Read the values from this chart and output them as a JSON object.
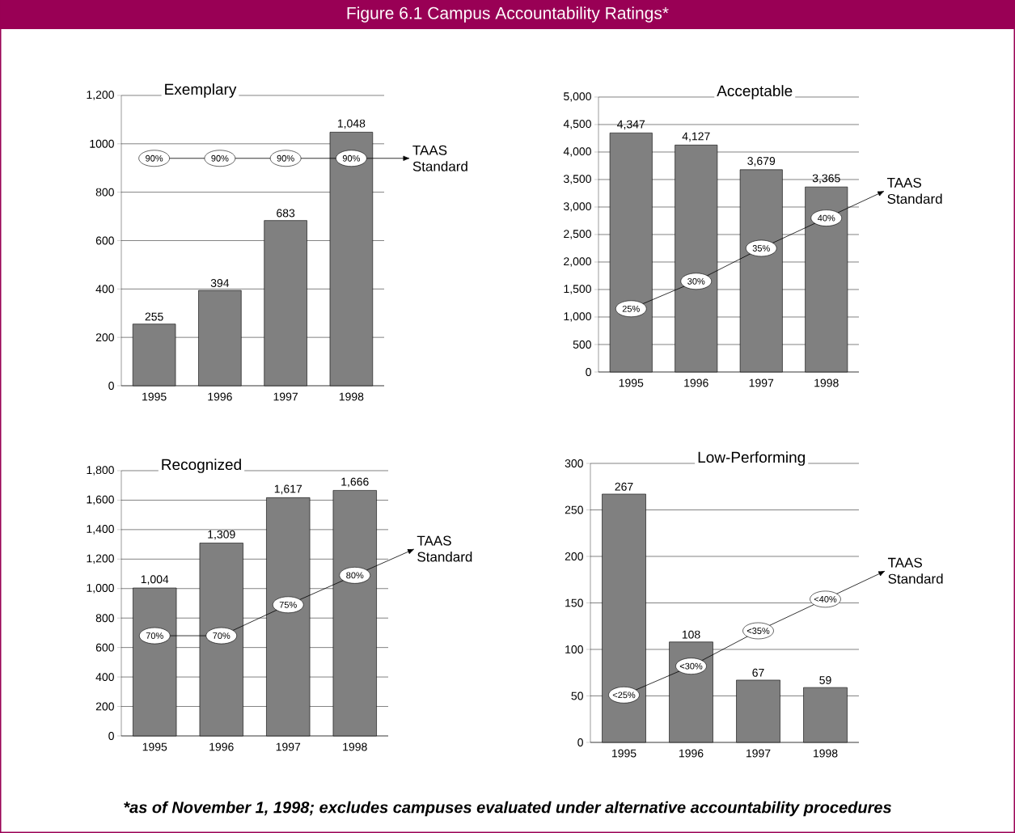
{
  "chart_data": [
    {
      "type": "other",
      "title": "Figure 6.1   Campus Accountability Ratings*",
      "annotations": [
        "*as of November 1, 1998; excludes campuses evaluated under alternative accountability procedures"
      ]
    },
    {
      "type": "bar",
      "title": "Exemplary",
      "categories": [
        "1995",
        "1996",
        "1997",
        "1998"
      ],
      "ylim": [
        0,
        1200
      ],
      "yticks": [
        0,
        200,
        400,
        600,
        800,
        1000,
        {
          "value": 1200,
          "label": "1,200"
        }
      ],
      "grid": "y",
      "series": [
        {
          "color": "#808080",
          "values": [
            255,
            394,
            683,
            1048
          ],
          "value_labels": [
            "255",
            "394",
            "683",
            "1,048"
          ]
        },
        {
          "type": "line",
          "marker": "circle",
          "name": "TAAS Standard",
          "color": "#000000",
          "values": [
            940,
            940,
            940,
            940
          ]
        }
      ],
      "annotations": [
        {
          "text": "90%",
          "x": "1995",
          "y": 940
        },
        {
          "text": "90%",
          "x": "1996",
          "y": 940
        },
        {
          "text": "90%",
          "x": "1997",
          "y": 940
        },
        {
          "text": "90%",
          "x": "1998",
          "y": 940
        }
      ]
    },
    {
      "type": "bar",
      "title": "Acceptable",
      "categories": [
        "1995",
        "1996",
        "1997",
        "1998"
      ],
      "ylim": [
        0,
        5000
      ],
      "yticks": [
        0,
        500,
        {
          "value": 1000,
          "label": "1,000"
        },
        {
          "value": 1500,
          "label": "1,500"
        },
        {
          "value": 2000,
          "label": "2,000"
        },
        {
          "value": 2500,
          "label": "2,500"
        },
        {
          "value": 3000,
          "label": "3,000"
        },
        {
          "value": 3500,
          "label": "3,500"
        },
        {
          "value": 4000,
          "label": "4,000"
        },
        {
          "value": 4500,
          "label": "4,500"
        },
        {
          "value": 5000,
          "label": "5,000"
        }
      ],
      "grid": "y",
      "series": [
        {
          "color": "#808080",
          "values": [
            4347,
            4127,
            3679,
            3365
          ],
          "value_labels": [
            "4,347",
            "4,127",
            "3,679",
            "3,365"
          ]
        },
        {
          "type": "line",
          "marker": "circle",
          "name": "TAAS Standard",
          "color": "#000000",
          "values": [
            1150,
            1650,
            2250,
            2800
          ]
        }
      ],
      "annotations": [
        {
          "text": "25%",
          "x": "1995",
          "y": 1150
        },
        {
          "text": "30%",
          "x": "1996",
          "y": 1650
        },
        {
          "text": "35%",
          "x": "1997",
          "y": 2250
        },
        {
          "text": "40%",
          "x": "1998",
          "y": 2800
        }
      ]
    },
    {
      "type": "bar",
      "title": "Recognized",
      "categories": [
        "1995",
        "1996",
        "1997",
        "1998"
      ],
      "ylim": [
        0,
        1800
      ],
      "yticks": [
        0,
        200,
        400,
        600,
        800,
        {
          "value": 1000,
          "label": "1,000"
        },
        {
          "value": 1200,
          "label": "1,200"
        },
        {
          "value": 1400,
          "label": "1,400"
        },
        {
          "value": 1600,
          "label": "1,600"
        },
        {
          "value": 1800,
          "label": "1,800"
        }
      ],
      "grid": "y",
      "series": [
        {
          "color": "#808080",
          "values": [
            1004,
            1309,
            1617,
            1666
          ],
          "value_labels": [
            "1,004",
            "1,309",
            "1,617",
            "1,666"
          ]
        },
        {
          "type": "line",
          "marker": "circle",
          "name": "TAAS Standard",
          "color": "#000000",
          "values": [
            680,
            680,
            890,
            1090
          ]
        }
      ],
      "annotations": [
        {
          "text": "70%",
          "x": "1995",
          "y": 680
        },
        {
          "text": "70%",
          "x": "1996",
          "y": 680
        },
        {
          "text": "75%",
          "x": "1997",
          "y": 890
        },
        {
          "text": "80%",
          "x": "1998",
          "y": 1090
        }
      ]
    },
    {
      "type": "bar",
      "title": "Low-Performing",
      "categories": [
        "1995",
        "1996",
        "1997",
        "1998"
      ],
      "ylim": [
        0,
        300
      ],
      "yticks": [
        0,
        50,
        100,
        150,
        200,
        250,
        300
      ],
      "grid": "y",
      "series": [
        {
          "color": "#808080",
          "values": [
            267,
            108,
            67,
            59
          ],
          "value_labels": [
            "267",
            "108",
            "67",
            "59"
          ]
        },
        {
          "type": "line",
          "marker": "circle",
          "name": "TAAS Standard",
          "color": "#000000",
          "values": [
            51,
            82,
            120,
            154
          ]
        }
      ],
      "annotations": [
        {
          "text": "<25%",
          "x": "1995",
          "y": 51
        },
        {
          "text": "<30%",
          "x": "1996",
          "y": 82
        },
        {
          "text": "<35%",
          "x": "1997",
          "y": 120
        },
        {
          "text": "<40%",
          "x": "1998",
          "y": 154
        }
      ]
    }
  ]
}
